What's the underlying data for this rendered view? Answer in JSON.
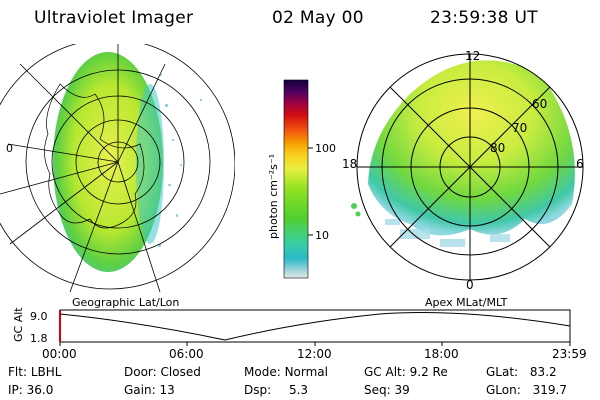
{
  "header": {
    "instrument": "Ultraviolet Imager",
    "date": "02 May 00",
    "time": "23:59:38 UT"
  },
  "colorbar": {
    "unit_label": "photon cm⁻²s⁻¹",
    "ticks": [
      "100",
      "10"
    ],
    "scale": "log",
    "colors": [
      "#e8e8e8",
      "#2ab8c8",
      "#3ad0a0",
      "#50d030",
      "#90e020",
      "#e8f040",
      "#f8d020",
      "#f8a000",
      "#f05010",
      "#d01010",
      "#a00040",
      "#500060",
      "#100040"
    ]
  },
  "left_panel": {
    "caption": "Geographic Lat/Lon",
    "side_tick": "0"
  },
  "right_panel": {
    "caption": "Apex MLat/MLT",
    "mlt_labels": {
      "top": "12",
      "left": "18",
      "right": "6",
      "bottom": "0"
    },
    "mlat_labels": [
      "60",
      "70",
      "80"
    ]
  },
  "altitude_plot": {
    "ylabel": "GC Alt",
    "yticks": [
      "9.0",
      "1.8"
    ],
    "xticks": [
      "00:00",
      "06:00",
      "12:00",
      "18:00",
      "23:59"
    ]
  },
  "info": {
    "flt_label": "Flt:",
    "flt_value": "LBHL",
    "ip_label": "IP:",
    "ip_value": "36.0",
    "door_label": "Door:",
    "door_value": "Closed",
    "gain_label": "Gain:",
    "gain_value": "13",
    "mode_label": "Mode:",
    "mode_value": "Normal",
    "dsp_label": "Dsp:",
    "dsp_value": "5.3",
    "gcalt_label": "GC Alt:",
    "gcalt_value": "9.2 Re",
    "seq_label": "Seq:",
    "seq_value": "39",
    "glat_label": "GLat:",
    "glat_value": "83.2",
    "glon_label": "GLon:",
    "glon_value": "319.7"
  }
}
